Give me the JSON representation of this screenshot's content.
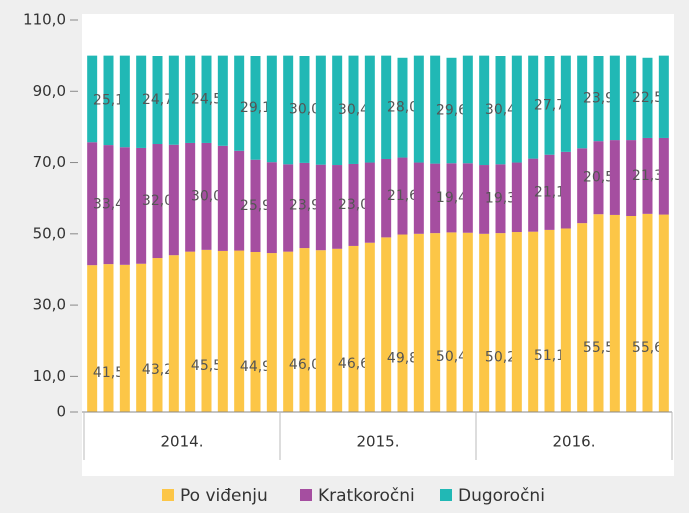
{
  "chart_data": {
    "type": "stacked_bar",
    "categories": [
      null,
      null,
      null,
      null,
      null,
      null,
      null,
      null,
      null,
      null,
      null,
      null,
      null,
      null,
      null,
      null,
      null,
      null,
      null,
      null,
      null,
      null,
      null,
      null,
      null,
      null,
      null,
      null,
      null,
      null,
      null,
      null,
      null,
      null,
      null,
      null
    ],
    "groups": [
      "2014.",
      "2015.",
      "2016."
    ],
    "ylim": [
      0,
      110
    ],
    "yticks": [
      0,
      {
        "value": 10,
        "label": "10,0"
      },
      {
        "value": 30,
        "label": "30,0"
      },
      {
        "value": 50,
        "label": "50,0"
      },
      {
        "value": 70,
        "label": "70,0"
      },
      {
        "value": 90,
        "label": "90,0"
      },
      {
        "value": 110,
        "label": "110,0"
      }
    ],
    "legend": "bottom",
    "series": [
      {
        "name": "Po viđenju",
        "color": "#fcc647",
        "values": [
          41.2,
          41.5,
          41.3,
          41.6,
          43.2,
          44.0,
          45.0,
          45.5,
          45.2,
          45.3,
          44.9,
          44.6,
          45.0,
          46.0,
          45.4,
          45.8,
          46.6,
          47.5,
          49.0,
          49.8,
          50.0,
          50.2,
          50.4,
          50.3,
          50.0,
          50.2,
          50.5,
          50.6,
          51.1,
          51.5,
          53.0,
          55.5,
          55.3,
          55.0,
          55.6,
          55.4
        ],
        "value_labels": [
          null,
          "41,5",
          null,
          null,
          "43,2",
          null,
          null,
          "45,5",
          null,
          null,
          "44,9",
          null,
          null,
          "46,0",
          null,
          null,
          "46,6",
          null,
          null,
          "49,8",
          null,
          null,
          "50,4",
          null,
          null,
          "50,2",
          null,
          null,
          "51,1",
          null,
          null,
          "55,5",
          null,
          null,
          "55,6",
          null
        ]
      },
      {
        "name": "Kratkoročni",
        "color": "#a54ea0",
        "values": [
          34.5,
          33.4,
          33.0,
          32.5,
          32.0,
          31.0,
          30.5,
          30.0,
          29.5,
          28.0,
          25.9,
          25.5,
          24.5,
          23.9,
          24.0,
          23.5,
          23.0,
          22.5,
          22.0,
          21.6,
          20.0,
          19.5,
          19.4,
          19.5,
          19.3,
          19.3,
          19.5,
          20.5,
          21.1,
          21.5,
          21.0,
          20.5,
          21.0,
          21.3,
          21.3,
          21.5
        ],
        "value_labels": [
          null,
          "33,4",
          null,
          null,
          "32,0",
          null,
          null,
          "30,0",
          null,
          null,
          "25,9",
          null,
          null,
          "23,9",
          null,
          null,
          "23,0",
          null,
          null,
          "21,6",
          null,
          null,
          "19,4",
          null,
          null,
          "19,3",
          null,
          null,
          "21,1",
          null,
          null,
          "20,5",
          null,
          null,
          "21,3",
          null
        ]
      },
      {
        "name": "Dugoročni",
        "color": "#21b8b5",
        "values": [
          24.3,
          25.1,
          25.7,
          25.9,
          24.7,
          25.0,
          24.5,
          24.5,
          25.3,
          26.7,
          29.1,
          29.9,
          30.5,
          30.0,
          30.6,
          30.7,
          30.4,
          30.0,
          29.0,
          28.0,
          30.0,
          30.3,
          29.6,
          30.2,
          30.7,
          30.4,
          30.0,
          28.9,
          27.7,
          27.0,
          26.0,
          23.9,
          23.7,
          23.7,
          22.5,
          23.1
        ],
        "value_labels": [
          null,
          "25,1",
          null,
          null,
          "24,7",
          null,
          null,
          "24,5",
          null,
          null,
          "29,1",
          null,
          null,
          "30,0",
          null,
          null,
          "30,4",
          null,
          null,
          "28,0",
          null,
          null,
          "29,6",
          null,
          null,
          "30,4",
          null,
          null,
          "27,7",
          null,
          null,
          "23,9",
          null,
          null,
          "22,5",
          null
        ]
      }
    ]
  }
}
